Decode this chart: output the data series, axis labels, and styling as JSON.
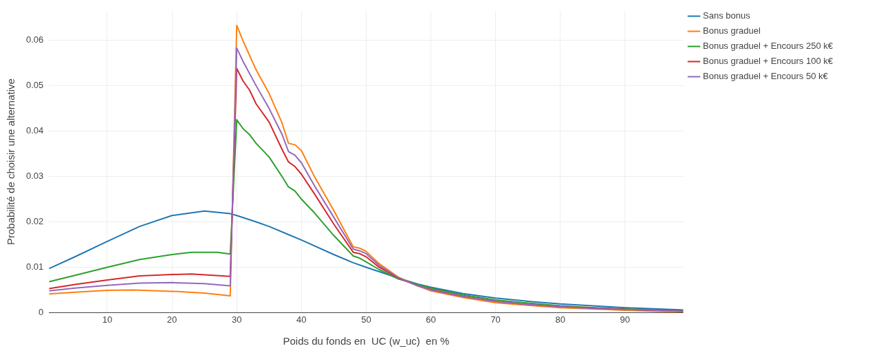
{
  "chart_data": {
    "type": "line",
    "xlabel": "Poids du fonds en  UC (w_uc)  en %",
    "ylabel": "Probabilité de choisir une alternative",
    "xlim": [
      1,
      99
    ],
    "xticks": [
      10,
      20,
      30,
      40,
      50,
      60,
      70,
      80,
      90
    ],
    "ylim": [
      0,
      0.0665
    ],
    "yticks": [
      0,
      0.01,
      0.02,
      0.03,
      0.04,
      0.05,
      0.06
    ],
    "grid": true,
    "legend": "top right",
    "marker": "none",
    "line_style": "solid",
    "series": [
      {
        "name": "Sans bonus",
        "color": "#1f77b4",
        "x": [
          1,
          5,
          10,
          15,
          20,
          25,
          29,
          30,
          33,
          35,
          38,
          40,
          45,
          48,
          50,
          55,
          58,
          60,
          65,
          70,
          75,
          80,
          85,
          90,
          95,
          99
        ],
        "values": [
          0.0097,
          0.0123,
          0.0157,
          0.019,
          0.0214,
          0.0224,
          0.0218,
          0.0214,
          0.02,
          0.019,
          0.0172,
          0.016,
          0.0128,
          0.011,
          0.01,
          0.0076,
          0.0063,
          0.0056,
          0.0042,
          0.0032,
          0.0025,
          0.0019,
          0.0015,
          0.0011,
          0.0008,
          0.0006
        ]
      },
      {
        "name": "Bonus graduel",
        "color": "#ff7f0e",
        "x": [
          1,
          5,
          10,
          14,
          20,
          25,
          29,
          30,
          31,
          33,
          35,
          37,
          38,
          39,
          40,
          42,
          45,
          48,
          49,
          50,
          52,
          55,
          58,
          60,
          65,
          70,
          75,
          80,
          85,
          90,
          95,
          99
        ],
        "values": [
          0.0041,
          0.0045,
          0.0049,
          0.005,
          0.0047,
          0.0043,
          0.0037,
          0.0633,
          0.0598,
          0.0535,
          0.0483,
          0.0418,
          0.0373,
          0.037,
          0.0357,
          0.03,
          0.0225,
          0.0145,
          0.0142,
          0.0135,
          0.0108,
          0.0078,
          0.0059,
          0.0048,
          0.0033,
          0.0022,
          0.0016,
          0.0011,
          0.0008,
          0.0005,
          0.0003,
          0.0002
        ]
      },
      {
        "name": "Bonus graduel + Encours 250 k€",
        "color": "#2ca02c",
        "x": [
          1,
          5,
          10,
          15,
          20,
          23,
          27,
          29,
          30,
          31,
          32,
          33,
          35,
          37,
          38,
          39,
          40,
          42,
          45,
          48,
          49,
          50,
          52,
          55,
          58,
          60,
          65,
          70,
          75,
          80,
          85,
          90,
          95,
          99
        ],
        "values": [
          0.0068,
          0.0082,
          0.01,
          0.0117,
          0.0128,
          0.0133,
          0.0133,
          0.0129,
          0.0425,
          0.0405,
          0.0392,
          0.0373,
          0.0343,
          0.03,
          0.0277,
          0.0268,
          0.025,
          0.022,
          0.017,
          0.0125,
          0.012,
          0.0112,
          0.0095,
          0.0074,
          0.0062,
          0.0054,
          0.0039,
          0.0028,
          0.0021,
          0.0015,
          0.0011,
          0.0008,
          0.0006,
          0.0004
        ]
      },
      {
        "name": "Bonus graduel + Encours 100 k€",
        "color": "#d62728",
        "x": [
          1,
          5,
          10,
          15,
          20,
          23,
          29,
          30,
          31,
          32,
          33,
          35,
          37,
          38,
          39,
          40,
          42,
          45,
          48,
          49,
          50,
          52,
          55,
          58,
          60,
          65,
          70,
          75,
          80,
          85,
          90,
          95,
          99
        ],
        "values": [
          0.0053,
          0.0062,
          0.0072,
          0.0081,
          0.0084,
          0.0085,
          0.008,
          0.0538,
          0.051,
          0.049,
          0.046,
          0.042,
          0.036,
          0.0332,
          0.0322,
          0.0305,
          0.0262,
          0.0195,
          0.0133,
          0.013,
          0.0123,
          0.01,
          0.0076,
          0.0059,
          0.0051,
          0.0036,
          0.0025,
          0.0018,
          0.0013,
          0.001,
          0.0007,
          0.0005,
          0.0003
        ]
      },
      {
        "name": "Bonus graduel + Encours 50 k€",
        "color": "#9467bd",
        "x": [
          1,
          5,
          10,
          15,
          20,
          25,
          29,
          30,
          31,
          33,
          35,
          37,
          38,
          39,
          40,
          42,
          45,
          48,
          49,
          50,
          52,
          55,
          58,
          60,
          65,
          70,
          75,
          80,
          85,
          90,
          95,
          99
        ],
        "values": [
          0.0048,
          0.0054,
          0.006,
          0.0065,
          0.0066,
          0.0064,
          0.0059,
          0.0583,
          0.0553,
          0.05,
          0.045,
          0.0393,
          0.0355,
          0.0347,
          0.033,
          0.028,
          0.021,
          0.014,
          0.0136,
          0.013,
          0.0104,
          0.0077,
          0.0059,
          0.005,
          0.0035,
          0.0025,
          0.0018,
          0.0013,
          0.0009,
          0.0007,
          0.0005,
          0.0003
        ]
      }
    ]
  }
}
